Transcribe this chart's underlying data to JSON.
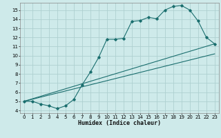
{
  "xlabel": "Humidex (Indice chaleur)",
  "xlim": [
    -0.5,
    23.5
  ],
  "ylim": [
    3.7,
    15.8
  ],
  "xticks": [
    0,
    1,
    2,
    3,
    4,
    5,
    6,
    7,
    8,
    9,
    10,
    11,
    12,
    13,
    14,
    15,
    16,
    17,
    18,
    19,
    20,
    21,
    22,
    23
  ],
  "yticks": [
    4,
    5,
    6,
    7,
    8,
    9,
    10,
    11,
    12,
    13,
    14,
    15
  ],
  "bg_color": "#ceeaea",
  "grid_color": "#aed0d0",
  "line_color": "#1a6e6e",
  "curve1_x": [
    0,
    1,
    2,
    3,
    4,
    5,
    6,
    7,
    8,
    9,
    10,
    11,
    12,
    13,
    14,
    15,
    16,
    17,
    18,
    19,
    20,
    21,
    22,
    23
  ],
  "curve1_y": [
    5.0,
    5.0,
    4.7,
    4.5,
    4.2,
    4.5,
    5.2,
    6.8,
    8.2,
    9.8,
    11.8,
    11.8,
    11.9,
    13.75,
    13.85,
    14.2,
    14.05,
    15.0,
    15.4,
    15.5,
    15.0,
    13.8,
    12.0,
    11.3
  ],
  "curve2_x": [
    0,
    23
  ],
  "curve2_y": [
    5.0,
    11.3
  ],
  "curve3_x": [
    0,
    23
  ],
  "curve3_y": [
    5.0,
    10.2
  ]
}
